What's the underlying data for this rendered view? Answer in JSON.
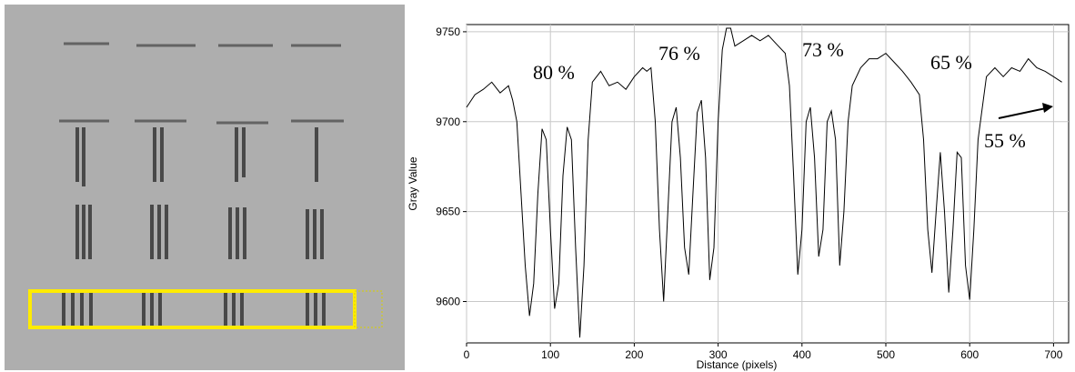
{
  "chart_data": {
    "type": "line",
    "x_label": "Distance (pixels)",
    "y_label": "Gray Value",
    "color": "#000000",
    "grid": true,
    "xlim": [
      0,
      718
    ],
    "ylim": [
      9577,
      9754
    ],
    "xticks": [
      0,
      100,
      200,
      300,
      400,
      500,
      600,
      700
    ],
    "yticks": [
      9600,
      9650,
      9700,
      9750
    ],
    "annotations": [
      "80 %",
      "76 %",
      "73 %",
      "65 %",
      "55 %"
    ],
    "x": [
      0,
      10,
      20,
      30,
      40,
      50,
      55,
      60,
      65,
      70,
      75,
      80,
      85,
      90,
      95,
      100,
      105,
      110,
      115,
      120,
      125,
      130,
      135,
      140,
      145,
      150,
      160,
      170,
      180,
      190,
      200,
      210,
      215,
      220,
      225,
      230,
      235,
      240,
      245,
      250,
      255,
      260,
      265,
      270,
      275,
      280,
      285,
      290,
      295,
      300,
      305,
      310,
      315,
      320,
      330,
      340,
      350,
      360,
      370,
      380,
      385,
      390,
      395,
      400,
      405,
      410,
      415,
      420,
      425,
      430,
      435,
      440,
      445,
      450,
      455,
      460,
      470,
      480,
      490,
      500,
      510,
      520,
      530,
      540,
      545,
      550,
      555,
      560,
      565,
      570,
      575,
      580,
      585,
      590,
      595,
      600,
      605,
      610,
      620,
      630,
      640,
      650,
      660,
      670,
      680,
      690,
      700,
      710
    ],
    "values": [
      9708,
      9715,
      9718,
      9722,
      9716,
      9720,
      9712,
      9700,
      9660,
      9620,
      9592,
      9610,
      9660,
      9696,
      9690,
      9640,
      9596,
      9610,
      9670,
      9697,
      9690,
      9630,
      9580,
      9620,
      9690,
      9722,
      9728,
      9720,
      9722,
      9718,
      9725,
      9730,
      9728,
      9730,
      9700,
      9640,
      9600,
      9650,
      9700,
      9708,
      9680,
      9630,
      9615,
      9660,
      9705,
      9712,
      9680,
      9612,
      9630,
      9700,
      9740,
      9752,
      9752,
      9742,
      9745,
      9748,
      9745,
      9748,
      9743,
      9738,
      9720,
      9670,
      9615,
      9640,
      9700,
      9708,
      9680,
      9625,
      9640,
      9700,
      9706,
      9690,
      9620,
      9650,
      9700,
      9720,
      9730,
      9735,
      9735,
      9738,
      9733,
      9728,
      9722,
      9715,
      9690,
      9640,
      9616,
      9650,
      9683,
      9650,
      9605,
      9640,
      9683,
      9680,
      9620,
      9601,
      9640,
      9690,
      9725,
      9730,
      9725,
      9730,
      9728,
      9735,
      9730,
      9728,
      9725,
      9722
    ]
  }
}
